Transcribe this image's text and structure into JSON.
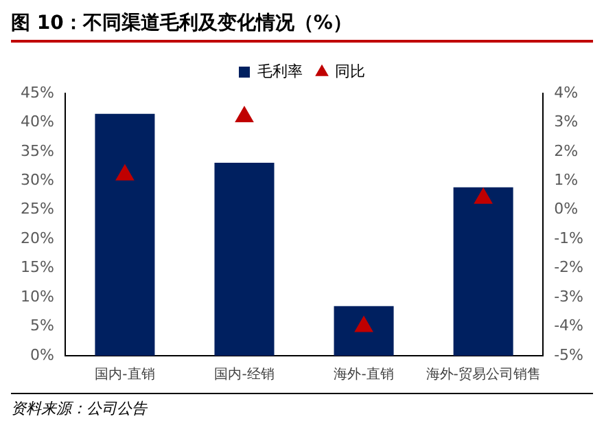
{
  "chart_data": {
    "type": "bar",
    "title": "图 10：不同渠道毛利及变化情况（%）",
    "categories": [
      "国内-直销",
      "国内-经销",
      "海外-直销",
      "海外-贸易公司销售"
    ],
    "series": [
      {
        "name": "毛利率",
        "color": "#002060",
        "values": [
          41.5,
          33.1,
          8.5,
          28.9
        ]
      },
      {
        "name": "同比",
        "type": "scatter",
        "axis": "y2",
        "color": "#c00000",
        "marker": "triangle",
        "values": [
          1.2,
          3.2,
          -4.0,
          0.4
        ]
      }
    ],
    "ylim": [
      0,
      45
    ],
    "yticks": [
      {
        "value": 0,
        "label": "0%"
      },
      {
        "value": 5,
        "label": "5%"
      },
      {
        "value": 10,
        "label": "10%"
      },
      {
        "value": 15,
        "label": "15%"
      },
      {
        "value": 20,
        "label": "20%"
      },
      {
        "value": 25,
        "label": "25%"
      },
      {
        "value": 30,
        "label": "30%"
      },
      {
        "value": 35,
        "label": "35%"
      },
      {
        "value": 40,
        "label": "40%"
      },
      {
        "value": 45,
        "label": "45%"
      }
    ],
    "y2lim": [
      -5,
      4
    ],
    "y2ticks": [
      {
        "value": -5,
        "label": "-5%"
      },
      {
        "value": -4,
        "label": "-4%"
      },
      {
        "value": -3,
        "label": "-3%"
      },
      {
        "value": -2,
        "label": "-2%"
      },
      {
        "value": -1,
        "label": "-1%"
      },
      {
        "value": 0,
        "label": "0%"
      },
      {
        "value": 1,
        "label": "1%"
      },
      {
        "value": 2,
        "label": "2%"
      },
      {
        "value": 3,
        "label": "3%"
      },
      {
        "value": 4,
        "label": "4%"
      }
    ],
    "grid": false,
    "legend": "top",
    "annotations": [
      "资料来源：公司公告"
    ]
  }
}
